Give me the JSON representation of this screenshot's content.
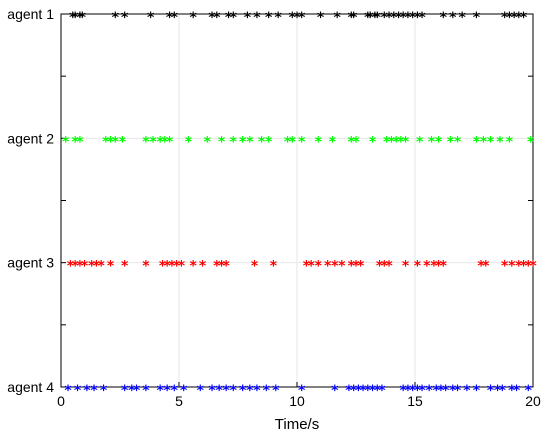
{
  "chart_data": {
    "type": "scatter",
    "xlabel": "Time/s",
    "ylabel": "",
    "xlim": [
      0,
      20
    ],
    "x_ticks": [
      "0",
      "5",
      "10",
      "15",
      "20"
    ],
    "x_tick_values": [
      0,
      5,
      10,
      15,
      20
    ],
    "grid": true,
    "marker": "*",
    "series": [
      {
        "name": "agent 1",
        "color": "#000000",
        "x": [
          0.5,
          0.6,
          0.8,
          0.9,
          2.3,
          2.7,
          3.8,
          4.6,
          4.8,
          5.6,
          6.4,
          6.6,
          7.1,
          7.3,
          7.9,
          8.3,
          8.8,
          9.2,
          9.8,
          10.0,
          10.2,
          11.0,
          11.7,
          12.3,
          12.4,
          13.0,
          13.1,
          13.3,
          13.4,
          13.7,
          13.9,
          14.1,
          14.3,
          14.5,
          14.7,
          14.9,
          15.1,
          15.3,
          16.2,
          16.6,
          17.0,
          17.6,
          18.8,
          19.0,
          19.2,
          19.4,
          19.6
        ]
      },
      {
        "name": "agent 2",
        "color": "#00ff00",
        "x": [
          0.2,
          0.6,
          0.8,
          1.9,
          2.1,
          2.3,
          2.6,
          3.6,
          3.9,
          4.2,
          4.4,
          4.6,
          5.4,
          6.2,
          6.8,
          7.3,
          7.7,
          8.0,
          8.5,
          8.8,
          9.6,
          9.8,
          10.2,
          10.9,
          11.5,
          12.3,
          12.5,
          13.2,
          13.8,
          14.0,
          14.2,
          14.4,
          14.6,
          15.2,
          15.7,
          16.0,
          16.5,
          16.8,
          17.6,
          17.9,
          18.2,
          18.6,
          19.0,
          19.9
        ]
      },
      {
        "name": "agent 3",
        "color": "#ff0000",
        "x": [
          0.4,
          0.6,
          0.8,
          1.0,
          1.3,
          1.5,
          1.7,
          2.1,
          2.7,
          3.6,
          4.3,
          4.5,
          4.7,
          4.9,
          5.1,
          5.6,
          6.0,
          6.6,
          6.8,
          7.0,
          8.2,
          9.0,
          10.4,
          10.6,
          10.9,
          11.3,
          11.6,
          11.9,
          12.3,
          12.5,
          12.7,
          13.5,
          13.7,
          13.9,
          14.6,
          15.1,
          15.5,
          15.8,
          16.0,
          16.2,
          17.8,
          18.0,
          18.8,
          19.1,
          19.4,
          19.6,
          19.8,
          20.0
        ]
      },
      {
        "name": "agent 4",
        "color": "#0000ff",
        "x": [
          0.3,
          0.7,
          1.1,
          1.4,
          1.8,
          2.7,
          3.0,
          3.2,
          3.6,
          4.2,
          4.5,
          4.8,
          5.2,
          5.9,
          6.4,
          6.7,
          7.0,
          7.3,
          7.7,
          8.0,
          8.3,
          8.7,
          9.1,
          10.2,
          11.6,
          12.2,
          12.4,
          12.6,
          12.8,
          13.0,
          13.2,
          13.4,
          13.6,
          14.5,
          14.7,
          14.9,
          15.1,
          15.3,
          15.6,
          15.9,
          16.1,
          16.3,
          16.6,
          16.8,
          17.2,
          17.6,
          18.2,
          18.5,
          18.7,
          19.1,
          19.3,
          19.8
        ]
      }
    ]
  }
}
